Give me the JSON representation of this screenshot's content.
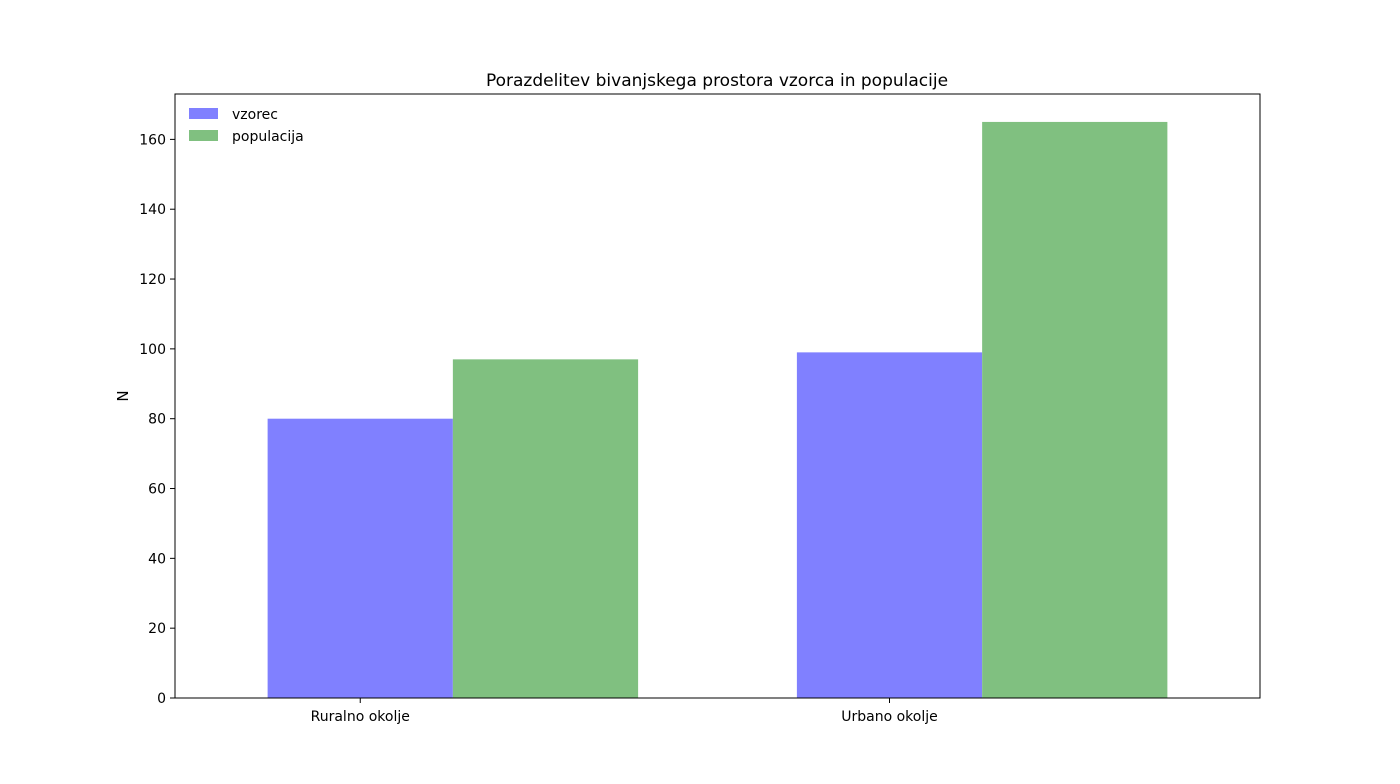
{
  "chart_data": {
    "type": "bar",
    "title": "Porazdelitev bivanjskega prostora vzorca in populacije",
    "xlabel": "",
    "ylabel": "N",
    "categories": [
      "Ruralno okolje",
      "Urbano okolje"
    ],
    "series": [
      {
        "name": "vzorec",
        "values": [
          80,
          99
        ],
        "color": "#8080ff"
      },
      {
        "name": "populacija",
        "values": [
          97,
          165
        ],
        "color": "#80c080"
      }
    ],
    "ylim": [
      0,
      173
    ],
    "yticks": [
      0,
      20,
      40,
      60,
      80,
      100,
      120,
      140,
      160
    ],
    "grid": false,
    "legend_position": "top-left"
  }
}
